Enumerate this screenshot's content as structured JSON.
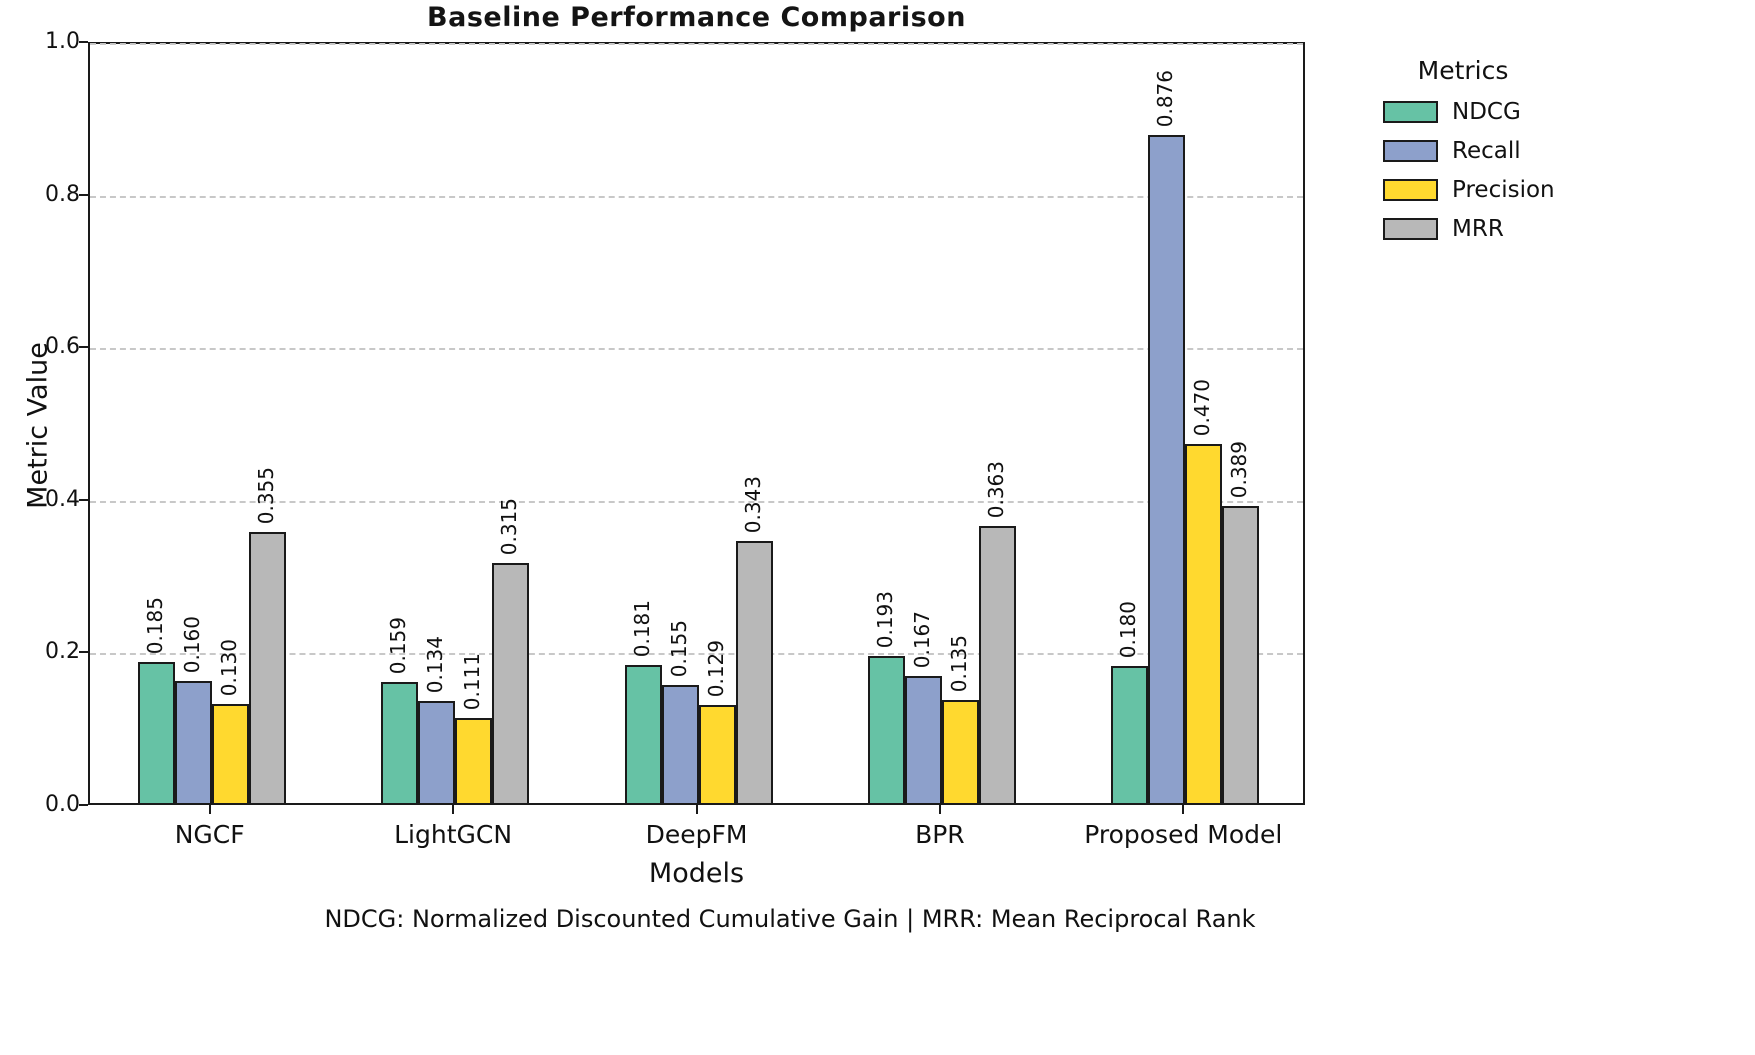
{
  "chart_data": {
    "type": "bar",
    "title": "Baseline Performance Comparison",
    "xlabel": "Models",
    "ylabel": "Metric Value",
    "legend_title": "Metrics",
    "legend_position": "outside right",
    "footnote": "NDCG: Normalized Discounted Cumulative Gain | MRR: Mean Reciprocal Rank",
    "categories": [
      "NGCF",
      "LightGCN",
      "DeepFM",
      "BPR",
      "Proposed Model"
    ],
    "series": [
      {
        "name": "NDCG",
        "color": "#66c2a5",
        "values": [
          0.185,
          0.159,
          0.181,
          0.193,
          0.18
        ]
      },
      {
        "name": "Recall",
        "color": "#8da0cb",
        "values": [
          0.16,
          0.134,
          0.155,
          0.167,
          0.876
        ]
      },
      {
        "name": "Precision",
        "color": "#ffd92f",
        "values": [
          0.13,
          0.111,
          0.129,
          0.135,
          0.47
        ]
      },
      {
        "name": "MRR",
        "color": "#b8b8b8",
        "values": [
          0.355,
          0.315,
          0.343,
          0.363,
          0.389
        ]
      }
    ],
    "ylim": [
      0.0,
      1.0
    ],
    "yticks": [
      "0.0",
      "0.2",
      "0.4",
      "0.6",
      "0.8",
      "1.0"
    ],
    "grid": "horizontal dashed",
    "bar_labels": "values shown rotated 90 deg, 3 decimals",
    "axis_color": "#1a1a1a",
    "grid_color": "#c8c8c8"
  }
}
